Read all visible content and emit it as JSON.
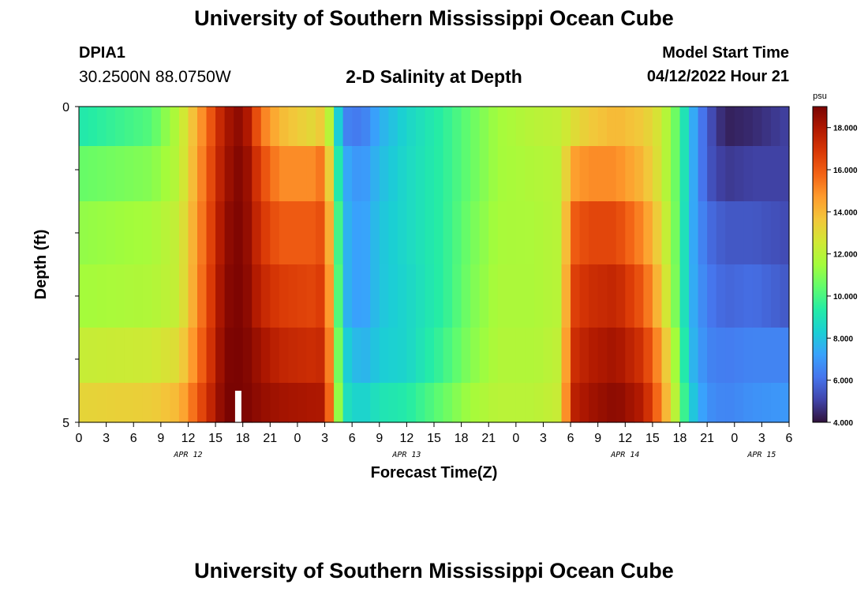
{
  "header": {
    "title": "University of Southern Mississippi Ocean Cube",
    "station_id": "DPIA1",
    "coordinates": "30.2500N  88.0750W",
    "subtitle": "2-D Salinity at Depth",
    "model_start_label": "Model Start Time",
    "model_start_value": "04/12/2022 Hour 21"
  },
  "footer": {
    "title": "University of Southern Mississippi Ocean Cube"
  },
  "chart_data": {
    "type": "heatmap",
    "title": "2-D Salinity at Depth",
    "xlabel": "Forecast Time(Z)",
    "ylabel": "Depth (ft)",
    "x_tick_labels": [
      "0",
      "3",
      "6",
      "9",
      "12",
      "15",
      "18",
      "21",
      "0",
      "3",
      "6",
      "9",
      "12",
      "15",
      "18",
      "21",
      "0",
      "3",
      "6",
      "9",
      "12",
      "15",
      "18",
      "21",
      "0",
      "3",
      "6"
    ],
    "date_labels": [
      {
        "text": "APR 12",
        "at_hour": 12
      },
      {
        "text": "APR 13",
        "at_hour": 36
      },
      {
        "text": "APR 14",
        "at_hour": 60
      },
      {
        "text": "APR 15",
        "at_hour": 75
      }
    ],
    "x_range_hours": [
      0,
      78
    ],
    "y_tick_labels": [
      "0",
      "5"
    ],
    "ylim": [
      0,
      5
    ],
    "colorbar": {
      "unit": "psu",
      "range": [
        4,
        19
      ],
      "tick_labels": [
        "4.000",
        "6.000",
        "8.000",
        "10.000",
        "12.000",
        "14.000",
        "16.000",
        "18.000"
      ],
      "tick_values": [
        4,
        6,
        8,
        10,
        12,
        14,
        16,
        18
      ],
      "colors": [
        "#30123b",
        "#4145ab",
        "#4675ed",
        "#39a2fc",
        "#1bcfd4",
        "#24eca6",
        "#61fc6c",
        "#a4fc3b",
        "#d1e834",
        "#f3c63a",
        "#fe9b2d",
        "#f36315",
        "#d93806",
        "#b11901",
        "#7a0402"
      ]
    },
    "time_hours": [
      0,
      1,
      2,
      3,
      4,
      5,
      6,
      7,
      8,
      9,
      10,
      11,
      12,
      13,
      14,
      15,
      16,
      17,
      18,
      19,
      20,
      21,
      22,
      23,
      24,
      25,
      26,
      27,
      28,
      29,
      30,
      31,
      32,
      33,
      34,
      35,
      36,
      37,
      38,
      39,
      40,
      41,
      42,
      43,
      44,
      45,
      46,
      47,
      48,
      49,
      50,
      51,
      52,
      53,
      54,
      55,
      56,
      57,
      58,
      59,
      60,
      61,
      62,
      63,
      64,
      65,
      66,
      67,
      68,
      69,
      70,
      71,
      72,
      73,
      74,
      75,
      76,
      77,
      78
    ],
    "depth_rows_ft": [
      0.25,
      1.0,
      2.0,
      3.0,
      4.0,
      4.75
    ],
    "salinity_keyframes": [
      {
        "hour": 0,
        "values": [
          9.2,
          10.5,
          11.2,
          11.5,
          12.3,
          13.2
        ]
      },
      {
        "hour": 8,
        "values": [
          10.2,
          11.0,
          11.6,
          11.8,
          12.5,
          13.4
        ]
      },
      {
        "hour": 11,
        "values": [
          12.0,
          12.0,
          12.3,
          12.3,
          13.0,
          14.0
        ]
      },
      {
        "hour": 14,
        "values": [
          15.5,
          15.8,
          16.0,
          16.2,
          16.5,
          17.0
        ]
      },
      {
        "hour": 16,
        "values": [
          18.0,
          18.2,
          18.5,
          18.7,
          18.9,
          19.0
        ]
      },
      {
        "hour": 18,
        "values": [
          18.8,
          19.0,
          19.0,
          19.0,
          19.0,
          19.0
        ]
      },
      {
        "hour": 20,
        "values": [
          15.5,
          16.5,
          17.0,
          17.5,
          18.2,
          18.5
        ]
      },
      {
        "hour": 22,
        "values": [
          14.0,
          15.0,
          16.0,
          16.8,
          17.5,
          18.2
        ]
      },
      {
        "hour": 26,
        "values": [
          13.0,
          15.0,
          16.0,
          16.5,
          17.2,
          18.0
        ]
      },
      {
        "hour": 27,
        "values": [
          14.0,
          15.8,
          16.5,
          17.0,
          17.5,
          18.0
        ]
      },
      {
        "hour": 28,
        "values": [
          10.0,
          11.0,
          12.0,
          12.5,
          13.0,
          13.5
        ]
      },
      {
        "hour": 29,
        "values": [
          6.5,
          7.5,
          7.8,
          7.8,
          8.5,
          9.0
        ]
      },
      {
        "hour": 31,
        "values": [
          6.2,
          6.8,
          7.0,
          7.0,
          7.5,
          8.3
        ]
      },
      {
        "hour": 33,
        "values": [
          7.5,
          7.8,
          8.0,
          8.0,
          8.2,
          9.0
        ]
      },
      {
        "hour": 36,
        "values": [
          8.5,
          8.6,
          8.6,
          8.5,
          8.5,
          9.3
        ]
      },
      {
        "hour": 40,
        "values": [
          9.5,
          9.5,
          9.5,
          9.5,
          9.8,
          10.5
        ]
      },
      {
        "hour": 43,
        "values": [
          10.5,
          10.5,
          10.7,
          10.8,
          11.0,
          11.5
        ]
      },
      {
        "hour": 46,
        "values": [
          11.5,
          11.5,
          11.6,
          11.7,
          11.8,
          12.0
        ]
      },
      {
        "hour": 50,
        "values": [
          12.0,
          11.8,
          11.7,
          11.7,
          11.8,
          12.0
        ]
      },
      {
        "hour": 53,
        "values": [
          12.2,
          12.0,
          12.0,
          12.0,
          12.2,
          12.4
        ]
      },
      {
        "hour": 54,
        "values": [
          12.8,
          14.5,
          15.8,
          16.5,
          17.0,
          17.5
        ]
      },
      {
        "hour": 56,
        "values": [
          13.5,
          15.0,
          16.5,
          17.2,
          17.8,
          18.2
        ]
      },
      {
        "hour": 59,
        "values": [
          14.0,
          15.0,
          16.5,
          17.5,
          18.2,
          18.7
        ]
      },
      {
        "hour": 62,
        "values": [
          13.5,
          14.0,
          15.0,
          16.0,
          17.0,
          17.8
        ]
      },
      {
        "hour": 64,
        "values": [
          12.5,
          12.5,
          13.0,
          13.5,
          14.5,
          15.0
        ]
      },
      {
        "hour": 66,
        "values": [
          10.0,
          10.0,
          10.0,
          10.0,
          10.5,
          11.0
        ]
      },
      {
        "hour": 67,
        "values": [
          8.0,
          8.0,
          7.8,
          7.8,
          8.0,
          8.5
        ]
      },
      {
        "hour": 69,
        "values": [
          5.5,
          5.5,
          6.0,
          6.3,
          6.5,
          6.8
        ]
      },
      {
        "hour": 71,
        "values": [
          4.3,
          4.8,
          5.5,
          5.8,
          6.3,
          6.5
        ]
      },
      {
        "hour": 74,
        "values": [
          4.5,
          5.0,
          5.5,
          6.0,
          6.5,
          6.8
        ]
      },
      {
        "hour": 78,
        "values": [
          5.0,
          5.0,
          5.2,
          5.5,
          6.5,
          7.0
        ]
      }
    ],
    "current_time_marker_hour": 17.5,
    "grid": false
  }
}
